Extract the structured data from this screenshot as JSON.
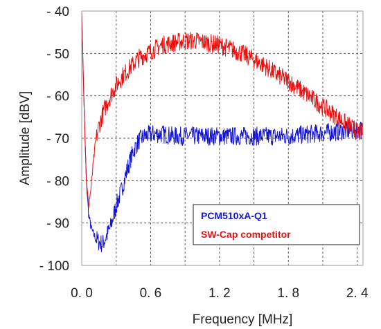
{
  "chart_data": {
    "type": "line",
    "xlabel": "Frequency [MHz]",
    "ylabel": "Amplitude [dBV]",
    "xlim": [
      0,
      2.45
    ],
    "ylim": [
      -100,
      -40
    ],
    "x_ticks": [
      {
        "value": 0.0,
        "label": "0. 0"
      },
      {
        "value": 0.6,
        "label": "0. 6"
      },
      {
        "value": 1.2,
        "label": "1. 2"
      },
      {
        "value": 1.8,
        "label": "1. 8"
      },
      {
        "value": 2.4,
        "label": "2. 4"
      }
    ],
    "y_ticks": [
      {
        "value": -40,
        "label": "- 40"
      },
      {
        "value": -50,
        "label": "- 50"
      },
      {
        "value": -60,
        "label": "- 60"
      },
      {
        "value": -70,
        "label": "- 70"
      },
      {
        "value": -80,
        "label": "- 80"
      },
      {
        "value": -90,
        "label": "- 90"
      },
      {
        "value": -100,
        "label": "- 100"
      }
    ],
    "grid": true,
    "legend_position": "bottom-right",
    "series": [
      {
        "name": "PCM510xA-Q1",
        "color": "#1414d2",
        "x": [
          0.0,
          0.02,
          0.04,
          0.06,
          0.08,
          0.1,
          0.12,
          0.15,
          0.18,
          0.2,
          0.25,
          0.3,
          0.35,
          0.4,
          0.45,
          0.5,
          0.55,
          0.6,
          0.7,
          0.8,
          0.9,
          1.0,
          1.2,
          1.4,
          1.6,
          1.8,
          2.0,
          2.2,
          2.4,
          2.45
        ],
        "y": [
          -40,
          -62,
          -80,
          -88,
          -91,
          -92.5,
          -93.5,
          -94.5,
          -95,
          -94,
          -91,
          -86,
          -82,
          -77,
          -73,
          -70.5,
          -69.5,
          -69,
          -69,
          -69.5,
          -69.5,
          -69.5,
          -69.5,
          -69.5,
          -69.5,
          -69.5,
          -69,
          -68.5,
          -68,
          -68
        ]
      },
      {
        "name": "SW-Cap competitor",
        "color": "#e81010",
        "x": [
          0.0,
          0.02,
          0.04,
          0.06,
          0.08,
          0.1,
          0.12,
          0.15,
          0.2,
          0.25,
          0.3,
          0.35,
          0.4,
          0.5,
          0.6,
          0.7,
          0.8,
          0.9,
          1.0,
          1.1,
          1.2,
          1.3,
          1.4,
          1.5,
          1.6,
          1.7,
          1.8,
          1.9,
          2.0,
          2.1,
          2.2,
          2.3,
          2.4,
          2.45
        ],
        "y": [
          -40,
          -62,
          -80,
          -86,
          -82,
          -76,
          -71,
          -67,
          -63,
          -60,
          -57.5,
          -55.5,
          -54,
          -51,
          -49.5,
          -48,
          -47.5,
          -47,
          -47,
          -47.5,
          -48,
          -49,
          -50,
          -51.5,
          -53,
          -55,
          -56.5,
          -58.5,
          -60.5,
          -62.5,
          -64.5,
          -66.5,
          -68.5,
          -69
        ]
      }
    ]
  }
}
